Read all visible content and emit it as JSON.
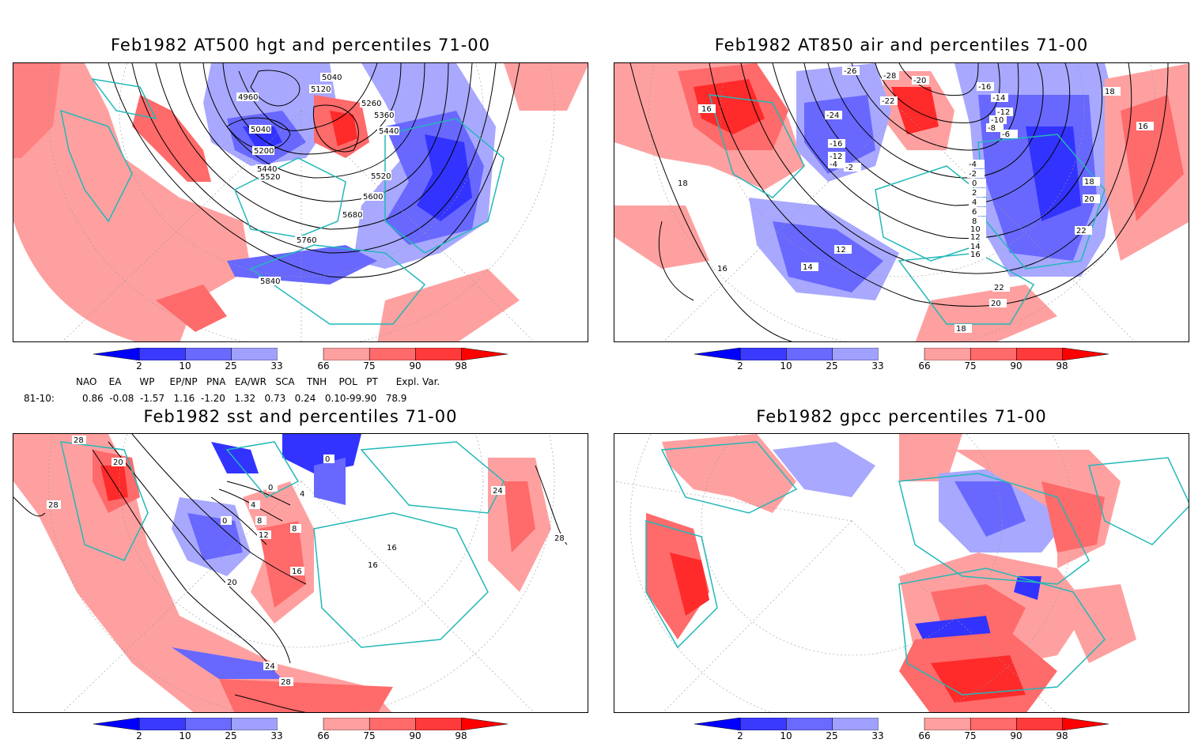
{
  "panels": [
    {
      "id": "hgt",
      "title": "Feb1982 AT500 hgt and percentiles 71-00",
      "contour_labels": [
        "5040",
        "5120",
        "4960",
        "5260",
        "5360",
        "5440",
        "5040",
        "5200",
        "5440",
        "5520",
        "5520",
        "5600",
        "5680",
        "5760",
        "5840"
      ]
    },
    {
      "id": "air",
      "title": "Feb1982 AT850 air and percentiles 71-00",
      "contour_labels": [
        "-26",
        "-28",
        "-20",
        "-16",
        "16",
        "-24",
        "-22",
        "-14",
        "-12",
        "-10",
        "-8",
        "-6",
        "-16",
        "-12",
        "-4",
        "-2",
        "-4",
        "-2",
        "0",
        "2",
        "4",
        "6",
        "8",
        "10",
        "12",
        "14",
        "16",
        "18",
        "18",
        "16",
        "18",
        "20",
        "22",
        "22",
        "20",
        "18",
        "12",
        "14",
        "16"
      ]
    },
    {
      "id": "sst",
      "title": "Feb1982 sst and percentiles 71-00",
      "contour_labels": [
        "28",
        "28",
        "20",
        "28",
        "0",
        "0",
        "4",
        "4",
        "0",
        "8",
        "8",
        "12",
        "16",
        "16",
        "16",
        "20",
        "24",
        "24",
        "28"
      ]
    },
    {
      "id": "gpcc",
      "title": "Feb1982 gpcc percentiles 71-00",
      "contour_labels": []
    }
  ],
  "colorbar": {
    "ticks": [
      "2",
      "10",
      "25",
      "33",
      "66",
      "75",
      "90",
      "98"
    ],
    "colors": [
      "#0000ff",
      "#3a3aff",
      "#6a6aff",
      "#a0a0ff",
      "#ffffff",
      "#ffa0a0",
      "#ff6a6a",
      "#ff3a3a",
      "#ff0000"
    ]
  },
  "indices": {
    "headers": "NAO    EA      WP     EP/NP   PNA   EA/WR   SCA    TNH    POL   PT      Expl. Var.",
    "row_label": "81-10:",
    "values": "0.86  -0.08  -1.57   1.16  -1.20   1.32   0.73   0.24   0.10-99.90   78.9"
  },
  "colors": {
    "coast": "#22b8b8",
    "blue_strong": "#3333ff",
    "blue_mid": "#6868ff",
    "blue_light": "#a8a8ff",
    "red_light": "#ffa0a0",
    "red_mid": "#ff6a6a",
    "red_strong": "#ff2a2a"
  }
}
